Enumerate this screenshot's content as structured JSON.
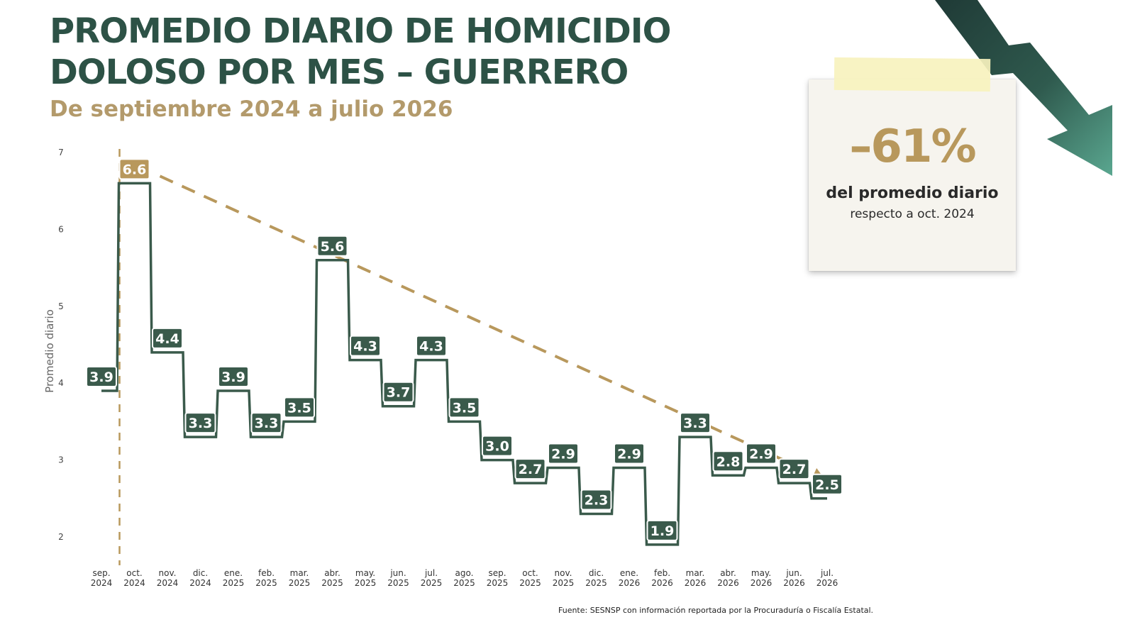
{
  "header": {
    "title_line1": "PROMEDIO DIARIO DE HOMICIDIO",
    "title_line2": "DOLOSO POR MES – GUERRERO",
    "subtitle": "De septiembre 2024 a julio 2026"
  },
  "note_card": {
    "percent": "–61%",
    "text1": "del promedio diario",
    "text2": "respecto a oct. 2024"
  },
  "colors": {
    "title": "#2d5246",
    "line": "#3a5a4b",
    "label_box": "#3a5a4b",
    "highlight_box": "#b8985c",
    "trend": "#b8985c",
    "subtitle": "#b39a6b"
  },
  "icons": {
    "decorative_arrow": "downward-trend-arrow-icon"
  },
  "footer": {
    "source": "Fuente: SESNSP con información reportada por la Procuraduría o Fiscalía Estatal."
  },
  "chart_data": {
    "type": "line",
    "style": "step",
    "ylabel": "Promedio diario",
    "xlabel": "",
    "ylim": [
      2,
      7
    ],
    "yticks": [
      2,
      3,
      4,
      5,
      6,
      7
    ],
    "categories": [
      [
        "sep.",
        "2024"
      ],
      [
        "oct.",
        "2024"
      ],
      [
        "nov.",
        "2024"
      ],
      [
        "dic.",
        "2024"
      ],
      [
        "ene.",
        "2025"
      ],
      [
        "feb.",
        "2025"
      ],
      [
        "mar.",
        "2025"
      ],
      [
        "abr.",
        "2025"
      ],
      [
        "may.",
        "2025"
      ],
      [
        "jun.",
        "2025"
      ],
      [
        "jul.",
        "2025"
      ],
      [
        "ago.",
        "2025"
      ],
      [
        "sep.",
        "2025"
      ],
      [
        "oct.",
        "2025"
      ],
      [
        "nov.",
        "2025"
      ],
      [
        "dic.",
        "2025"
      ],
      [
        "ene.",
        "2026"
      ],
      [
        "feb.",
        "2026"
      ],
      [
        "mar.",
        "2026"
      ],
      [
        "abr.",
        "2026"
      ],
      [
        "may.",
        "2026"
      ],
      [
        "jun.",
        "2026"
      ],
      [
        "jul.",
        "2026"
      ]
    ],
    "values": [
      3.9,
      6.6,
      4.4,
      3.3,
      3.9,
      3.3,
      3.5,
      5.6,
      4.3,
      3.7,
      4.3,
      3.5,
      3.0,
      2.7,
      2.9,
      2.3,
      2.9,
      1.9,
      3.3,
      2.8,
      2.9,
      2.7,
      2.5
    ],
    "value_labels": [
      "3.9",
      "6.6",
      "4.4",
      "3.3",
      "3.9",
      "3.3",
      "3.5",
      "5.6",
      "4.3",
      "3.7",
      "4.3",
      "3.5",
      "3.0",
      "2.7",
      "2.9",
      "2.3",
      "2.9",
      "1.9",
      "3.3",
      "2.8",
      "2.9",
      "2.7",
      "2.5"
    ],
    "highlight_index": 1,
    "trend_line": {
      "from_index": 1,
      "to_index": 22,
      "style": "dashed"
    },
    "reference_vline_index": 1,
    "grid": false,
    "legend": false
  }
}
